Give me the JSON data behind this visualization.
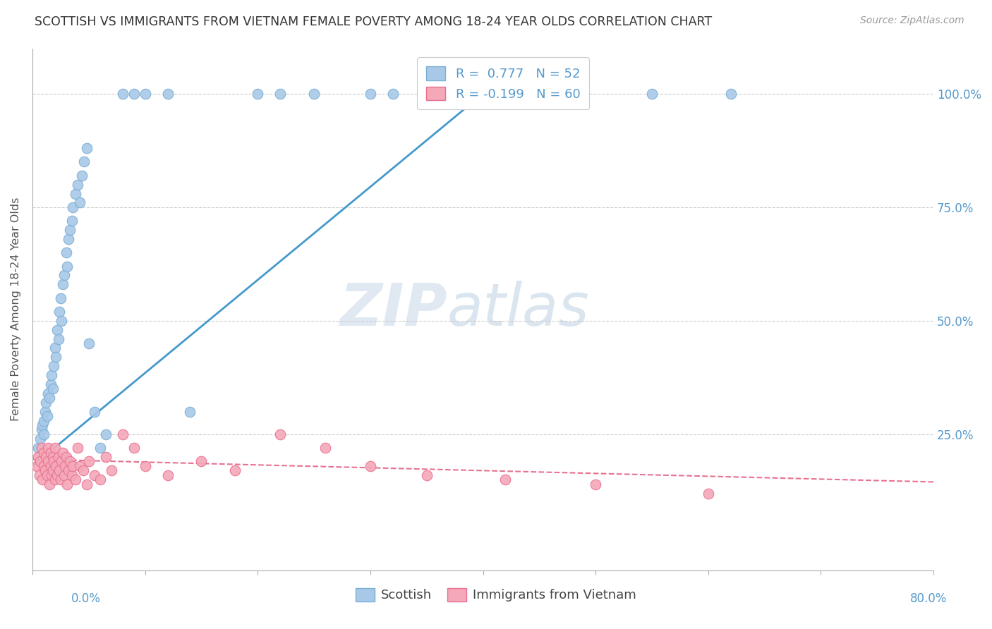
{
  "title": "SCOTTISH VS IMMIGRANTS FROM VIETNAM FEMALE POVERTY AMONG 18-24 YEAR OLDS CORRELATION CHART",
  "source": "Source: ZipAtlas.com",
  "ylabel": "Female Poverty Among 18-24 Year Olds",
  "xlim": [
    0,
    0.8
  ],
  "ylim": [
    -0.05,
    1.1
  ],
  "R_scottish": 0.777,
  "N_scottish": 52,
  "R_vietnam": -0.199,
  "N_vietnam": 60,
  "watermark_zip": "ZIP",
  "watermark_atlas": "atlas",
  "scottish_color": "#a8c8e8",
  "scottish_edge": "#7aafd4",
  "vietnam_color": "#f4a8b8",
  "vietnam_edge": "#e87090",
  "trendline_scottish_color": "#4499cc",
  "trendline_vietnam_color": "#e87090",
  "scottish_x": [
    0.005,
    0.007,
    0.008,
    0.009,
    0.01,
    0.01,
    0.011,
    0.012,
    0.013,
    0.014,
    0.015,
    0.016,
    0.017,
    0.018,
    0.019,
    0.02,
    0.021,
    0.022,
    0.023,
    0.024,
    0.025,
    0.026,
    0.027,
    0.028,
    0.03,
    0.031,
    0.032,
    0.033,
    0.035,
    0.036,
    0.038,
    0.04,
    0.042,
    0.044,
    0.046,
    0.048,
    0.05,
    0.055,
    0.06,
    0.065,
    0.08,
    0.09,
    0.1,
    0.12,
    0.14,
    0.2,
    0.22,
    0.25,
    0.3,
    0.32,
    0.55,
    0.62
  ],
  "scottish_y": [
    0.22,
    0.24,
    0.26,
    0.27,
    0.25,
    0.28,
    0.3,
    0.32,
    0.29,
    0.34,
    0.33,
    0.36,
    0.38,
    0.35,
    0.4,
    0.44,
    0.42,
    0.48,
    0.46,
    0.52,
    0.55,
    0.5,
    0.58,
    0.6,
    0.65,
    0.62,
    0.68,
    0.7,
    0.72,
    0.75,
    0.78,
    0.8,
    0.76,
    0.82,
    0.85,
    0.88,
    0.45,
    0.3,
    0.22,
    0.25,
    1.0,
    1.0,
    1.0,
    1.0,
    0.3,
    1.0,
    1.0,
    1.0,
    1.0,
    1.0,
    1.0,
    1.0
  ],
  "vietnam_x": [
    0.004,
    0.005,
    0.006,
    0.007,
    0.008,
    0.009,
    0.01,
    0.01,
    0.011,
    0.012,
    0.013,
    0.014,
    0.014,
    0.015,
    0.016,
    0.016,
    0.017,
    0.018,
    0.018,
    0.019,
    0.02,
    0.02,
    0.021,
    0.022,
    0.023,
    0.024,
    0.025,
    0.026,
    0.027,
    0.028,
    0.029,
    0.03,
    0.031,
    0.032,
    0.033,
    0.035,
    0.036,
    0.038,
    0.04,
    0.042,
    0.045,
    0.048,
    0.05,
    0.055,
    0.06,
    0.065,
    0.07,
    0.08,
    0.09,
    0.1,
    0.12,
    0.15,
    0.18,
    0.22,
    0.26,
    0.3,
    0.35,
    0.42,
    0.5,
    0.6
  ],
  "vietnam_y": [
    0.18,
    0.2,
    0.16,
    0.19,
    0.22,
    0.15,
    0.18,
    0.21,
    0.17,
    0.2,
    0.16,
    0.19,
    0.22,
    0.14,
    0.18,
    0.21,
    0.16,
    0.2,
    0.17,
    0.19,
    0.15,
    0.22,
    0.18,
    0.16,
    0.2,
    0.17,
    0.15,
    0.19,
    0.21,
    0.16,
    0.18,
    0.2,
    0.14,
    0.17,
    0.19,
    0.16,
    0.18,
    0.15,
    0.22,
    0.18,
    0.17,
    0.14,
    0.19,
    0.16,
    0.15,
    0.2,
    0.17,
    0.25,
    0.22,
    0.18,
    0.16,
    0.19,
    0.17,
    0.25,
    0.22,
    0.18,
    0.16,
    0.15,
    0.14,
    0.12
  ],
  "scottish_trend_x": [
    0.0,
    0.4
  ],
  "scottish_trend_y": [
    0.18,
    1.0
  ],
  "vietnam_trend_x": [
    0.0,
    0.8
  ],
  "vietnam_trend_y": [
    0.195,
    0.145
  ],
  "ytick_positions": [
    0.25,
    0.5,
    0.75,
    1.0
  ],
  "ytick_labels": [
    "25.0%",
    "50.0%",
    "75.0%",
    "100.0%"
  ],
  "grid_color": "#cccccc",
  "spine_color": "#aaaaaa",
  "title_color": "#333333",
  "source_color": "#999999",
  "ylabel_color": "#555555",
  "right_tick_color": "#5599cc"
}
